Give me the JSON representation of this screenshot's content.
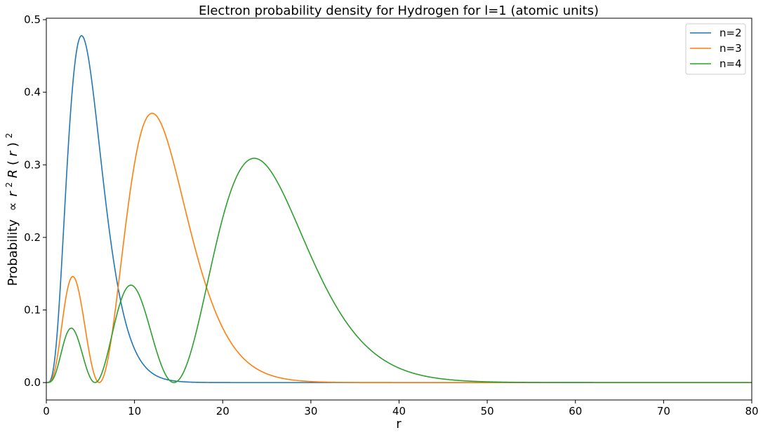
{
  "chart_data": {
    "type": "line",
    "title": "Electron probability density for Hydrogen for l=1 (atomic units)",
    "xlabel": "r",
    "ylabel": {
      "prefix": "Probability",
      "proportional": "∝",
      "r": "r",
      "r_exp": "2",
      "R": "R",
      "paren_open": "(",
      "r2": "r",
      "paren_close": ")",
      "sq": "2"
    },
    "xlim": [
      0,
      80
    ],
    "ylim": [
      -0.024,
      0.502
    ],
    "xticks": [
      "0",
      "10",
      "20",
      "30",
      "40",
      "50",
      "60",
      "70",
      "80"
    ],
    "yticks": [
      "0.0",
      "0.1",
      "0.2",
      "0.3",
      "0.4",
      "0.5"
    ],
    "grid": false,
    "legend_position": "top-right",
    "series": [
      {
        "name": "n=2",
        "color": "#1f77b4",
        "l": 1,
        "n": 2,
        "peak_x": 6.0,
        "peak_y": 0.478
      },
      {
        "name": "n=3",
        "color": "#ff7f0e",
        "l": 1,
        "n": 3,
        "peak_x": 14.2,
        "peak_y": 0.371
      },
      {
        "name": "n=4",
        "color": "#2ca02c",
        "l": 1,
        "n": 4,
        "peak_x": 26.0,
        "peak_y": 0.309
      }
    ]
  }
}
